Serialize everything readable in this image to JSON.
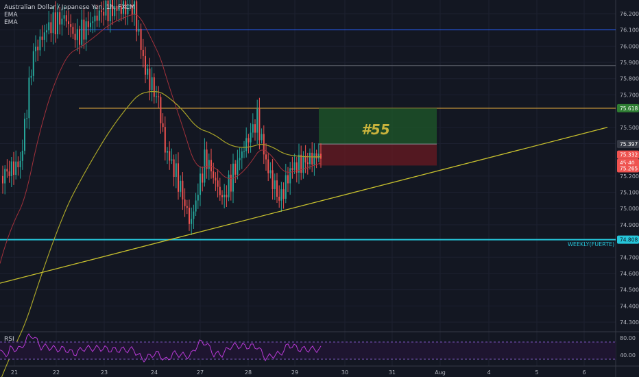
{
  "header": {
    "title": "Australian Dollar / Japanese Yen, 1h, FXCM",
    "indicators": [
      "EMA",
      "EMA"
    ]
  },
  "trade_label": "#55",
  "weekly_label": "WEEKLY(FUERTE)",
  "rsi_label": "RSI",
  "colors": {
    "background": "#131722",
    "up": "#26a69a",
    "down": "#ef5350",
    "ema_fast": "#a2313b",
    "ema_slow": "#a8a328",
    "trendline": "#c8c12e",
    "resistance": "#d4a03c",
    "blue_line": "#2962ff",
    "cyan_line": "#26c6da",
    "rsi": "#b83ad6"
  },
  "chart_data": {
    "type": "candlestick",
    "title": "Australian Dollar / Japanese Yen, 1h, FXCM",
    "xlabel": "",
    "ylabel": "",
    "y_ticks": [
      "76.200",
      "76.100",
      "76.000",
      "75.900",
      "75.800",
      "75.700",
      "75.500",
      "75.400",
      "75.200",
      "75.100",
      "75.000",
      "74.900",
      "74.700",
      "74.600",
      "74.500",
      "74.400",
      "74.300"
    ],
    "x_ticks": [
      "21",
      "22",
      "23",
      "24",
      "27",
      "28",
      "29",
      "30",
      "31",
      "Aug",
      "4",
      "5",
      "6"
    ],
    "ylim": [
      74.25,
      76.24
    ],
    "price_levels": [
      {
        "value": 76.1,
        "label": "",
        "color": "#2962ff"
      },
      {
        "value": 75.88,
        "label": "",
        "color": "#5d606b"
      },
      {
        "value": 75.618,
        "label": "75.618",
        "color": "#d4a03c"
      },
      {
        "value": 74.808,
        "label": "74.808",
        "color": "#26c6da"
      }
    ],
    "price_tags": [
      {
        "label": "75.618",
        "color": "#2e7d32"
      },
      {
        "label": "75.397",
        "color": "#363a45"
      },
      {
        "label": "75.332",
        "color": "#ef5350"
      },
      {
        "label": "45:40",
        "color": "#ef5350"
      },
      {
        "label": "75.265",
        "color": "#ef5350"
      },
      {
        "label": "74.808",
        "color": "#26c6da"
      }
    ],
    "trade_box": {
      "entry": 75.397,
      "target": 75.618,
      "stop": 75.265
    },
    "trendline": {
      "from": {
        "day": "20",
        "price": 74.54
      },
      "to": {
        "day": "Aug 3",
        "price": 75.5
      }
    },
    "candles_summary": {
      "open": 75.2,
      "high": 76.24,
      "low": 74.88,
      "last": 75.332
    },
    "rsi": {
      "levels": [
        80.0,
        40.0
      ],
      "tick_labels": [
        "80.00",
        "40.00"
      ]
    }
  }
}
